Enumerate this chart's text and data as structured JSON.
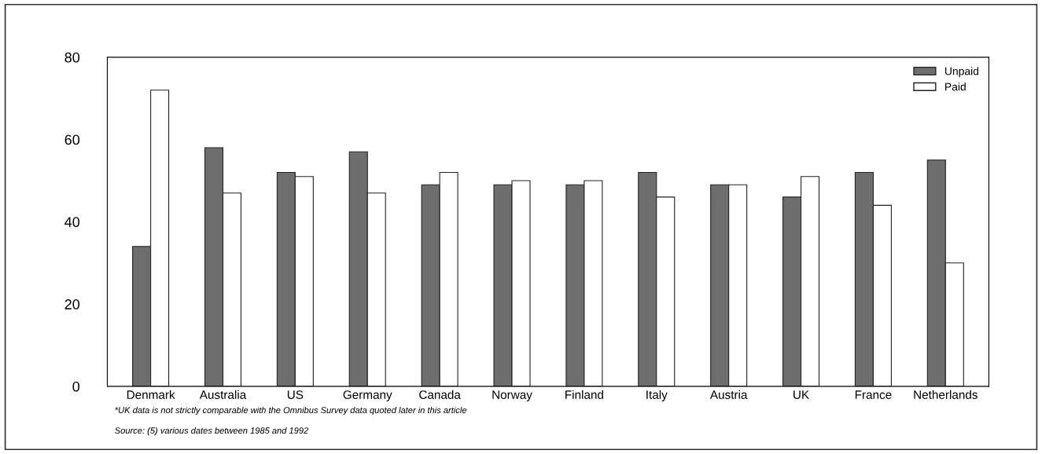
{
  "chart_data": {
    "type": "bar",
    "categories": [
      "Denmark",
      "Australia",
      "US",
      "Germany",
      "Canada",
      "Norway",
      "Finland",
      "Italy",
      "Austria",
      "UK",
      "France",
      "Netherlands"
    ],
    "series": [
      {
        "name": "Unpaid",
        "color": "#6e6e6e",
        "values": [
          34,
          58,
          52,
          57,
          49,
          49,
          49,
          52,
          49,
          46,
          52,
          55
        ]
      },
      {
        "name": "Paid",
        "color": "#ffffff",
        "values": [
          72,
          47,
          51,
          47,
          52,
          50,
          50,
          46,
          49,
          51,
          44,
          30
        ]
      }
    ],
    "ylim": [
      0,
      80
    ],
    "yticks": [
      0,
      20,
      40,
      60,
      80
    ],
    "grid": false,
    "legend": "top right",
    "annotations": [
      "*UK data is not strictly comparable with the Omnibus Survey data quoted later in this article",
      "Source: (5) various dates between 1985 and 1992"
    ]
  }
}
